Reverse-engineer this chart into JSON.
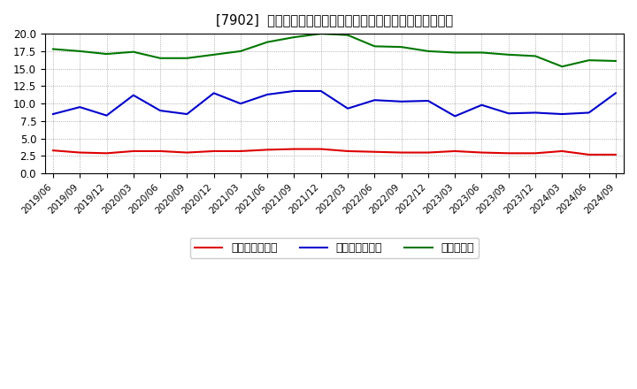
{
  "title": "[7902]  売上債権回転率、買入債務回転率、在庫回転率の推移",
  "dates": [
    "2019/06",
    "2019/09",
    "2019/12",
    "2020/03",
    "2020/06",
    "2020/09",
    "2020/12",
    "2021/03",
    "2021/06",
    "2021/09",
    "2021/12",
    "2022/03",
    "2022/06",
    "2022/09",
    "2022/12",
    "2023/03",
    "2023/06",
    "2023/09",
    "2023/12",
    "2024/03",
    "2024/06",
    "2024/09"
  ],
  "receivables_turnover": [
    3.3,
    3.0,
    2.9,
    3.2,
    3.2,
    3.0,
    3.2,
    3.2,
    3.4,
    3.5,
    3.5,
    3.2,
    3.1,
    3.0,
    3.0,
    3.2,
    3.0,
    2.9,
    2.9,
    3.2,
    2.7,
    2.7
  ],
  "payables_turnover": [
    8.5,
    9.5,
    8.3,
    11.2,
    9.0,
    8.5,
    11.5,
    10.0,
    11.3,
    11.8,
    11.8,
    9.3,
    10.5,
    10.3,
    10.4,
    8.2,
    9.8,
    8.6,
    8.7,
    8.5,
    8.7,
    11.5
  ],
  "inventory_turnover": [
    17.8,
    17.5,
    17.1,
    17.4,
    16.5,
    16.5,
    17.0,
    17.5,
    18.8,
    19.5,
    20.0,
    19.8,
    18.2,
    18.1,
    17.5,
    17.3,
    17.3,
    17.0,
    16.8,
    15.3,
    16.2,
    16.1
  ],
  "ylim": [
    0,
    20.0
  ],
  "yticks": [
    0.0,
    2.5,
    5.0,
    7.5,
    10.0,
    12.5,
    15.0,
    17.5,
    20.0
  ],
  "line_colors": {
    "receivables": "#dd0000",
    "payables": "#0000cc",
    "inventory": "#007700"
  },
  "legend_labels": [
    "売上債権回転率",
    "買入債務回転率",
    "在庫回転率"
  ],
  "bg_color": "#ffffff",
  "grid_color": "#999999"
}
